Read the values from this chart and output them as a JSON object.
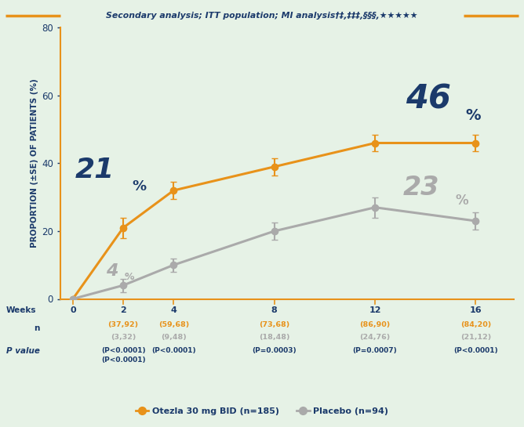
{
  "title": "Secondary analysis; ITT population; MI analysis",
  "title_sup": "†‡,‡‡‡,§§§,★★★★★",
  "ylabel": "PROPORTION (±SE) OF PATIENTS (%)",
  "weeks": [
    0,
    2,
    4,
    8,
    12,
    16
  ],
  "otezla_values": [
    0,
    21,
    32,
    39,
    46,
    46
  ],
  "otezla_se": [
    0,
    3,
    2.5,
    2.5,
    2.5,
    2.5
  ],
  "placebo_values": [
    0,
    4,
    10,
    20,
    27,
    23
  ],
  "placebo_se": [
    0,
    2,
    2,
    2.5,
    3,
    2.5
  ],
  "otezla_color": "#E8921A",
  "placebo_color": "#AAAAAA",
  "bg_color": "#E6F2E6",
  "title_color": "#1B3A6B",
  "border_color": "#E8921A",
  "ylim": [
    0,
    80
  ],
  "yticks": [
    0,
    20,
    40,
    60,
    80
  ],
  "week_labels": [
    "0",
    "2",
    "4",
    "8",
    "12",
    "16"
  ],
  "n_otezla": [
    "",
    "(37,92)",
    "(59,68)",
    "(73,68)",
    "(86,90)",
    "(84,20)"
  ],
  "n_placebo": [
    "",
    "(3,32)",
    "(9,48)",
    "(18,48)",
    "(24,76)",
    "(21,12)"
  ],
  "p_line1": [
    "",
    "(P<0.0001)",
    "(P<0.0001)",
    "(P=0.0003)",
    "(P=0.0007)",
    "(P<0.0001)"
  ],
  "p_line2": [
    "",
    "(P<0.0001)",
    "",
    "",
    "",
    ""
  ],
  "legend_otezla": "Otezla 30 mg BID (n=185)",
  "legend_placebo": "Placebo (n=94)"
}
